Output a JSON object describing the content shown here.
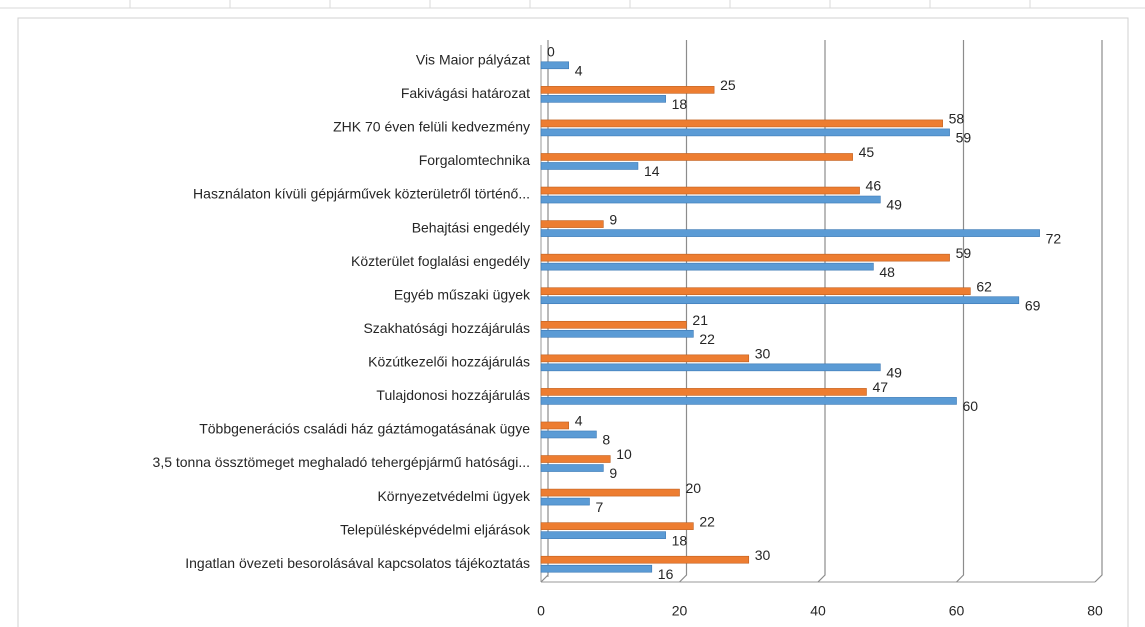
{
  "chart_data": {
    "type": "bar",
    "orientation": "horizontal",
    "categories": [
      "Vis Maior pályázat",
      "Fakivágási határozat",
      "ZHK 70 éven felüli kedvezmény",
      "Forgalomtechnika",
      "Használaton kívüli gépjárművek közterületről történő...",
      "Behajtási engedély",
      "Közterület foglalási engedély",
      "Egyéb műszaki ügyek",
      "Szakhatósági hozzájárulás",
      "Közútkezelői hozzájárulás",
      "Tulajdonosi hozzájárulás",
      "Többgenerációs családi ház gáztámogatásának ügye",
      "3,5 tonna össztömeget meghaladó tehergépjármű hatósági...",
      "Környezetvédelmi ügyek",
      "Településképvédelmi eljárások",
      "Ingatlan övezeti besorolásával kapcsolatos tájékoztatás"
    ],
    "series": [
      {
        "color": "#ED7D31",
        "values": [
          0,
          25,
          58,
          45,
          46,
          9,
          59,
          62,
          21,
          30,
          47,
          4,
          10,
          20,
          22,
          30
        ]
      },
      {
        "color": "#5B9BD5",
        "values": [
          4,
          18,
          59,
          14,
          49,
          72,
          48,
          69,
          22,
          49,
          60,
          8,
          9,
          7,
          18,
          16
        ]
      }
    ],
    "xlim": [
      0,
      80
    ],
    "xticks": [
      0,
      20,
      40,
      60,
      80
    ],
    "grid": true
  }
}
